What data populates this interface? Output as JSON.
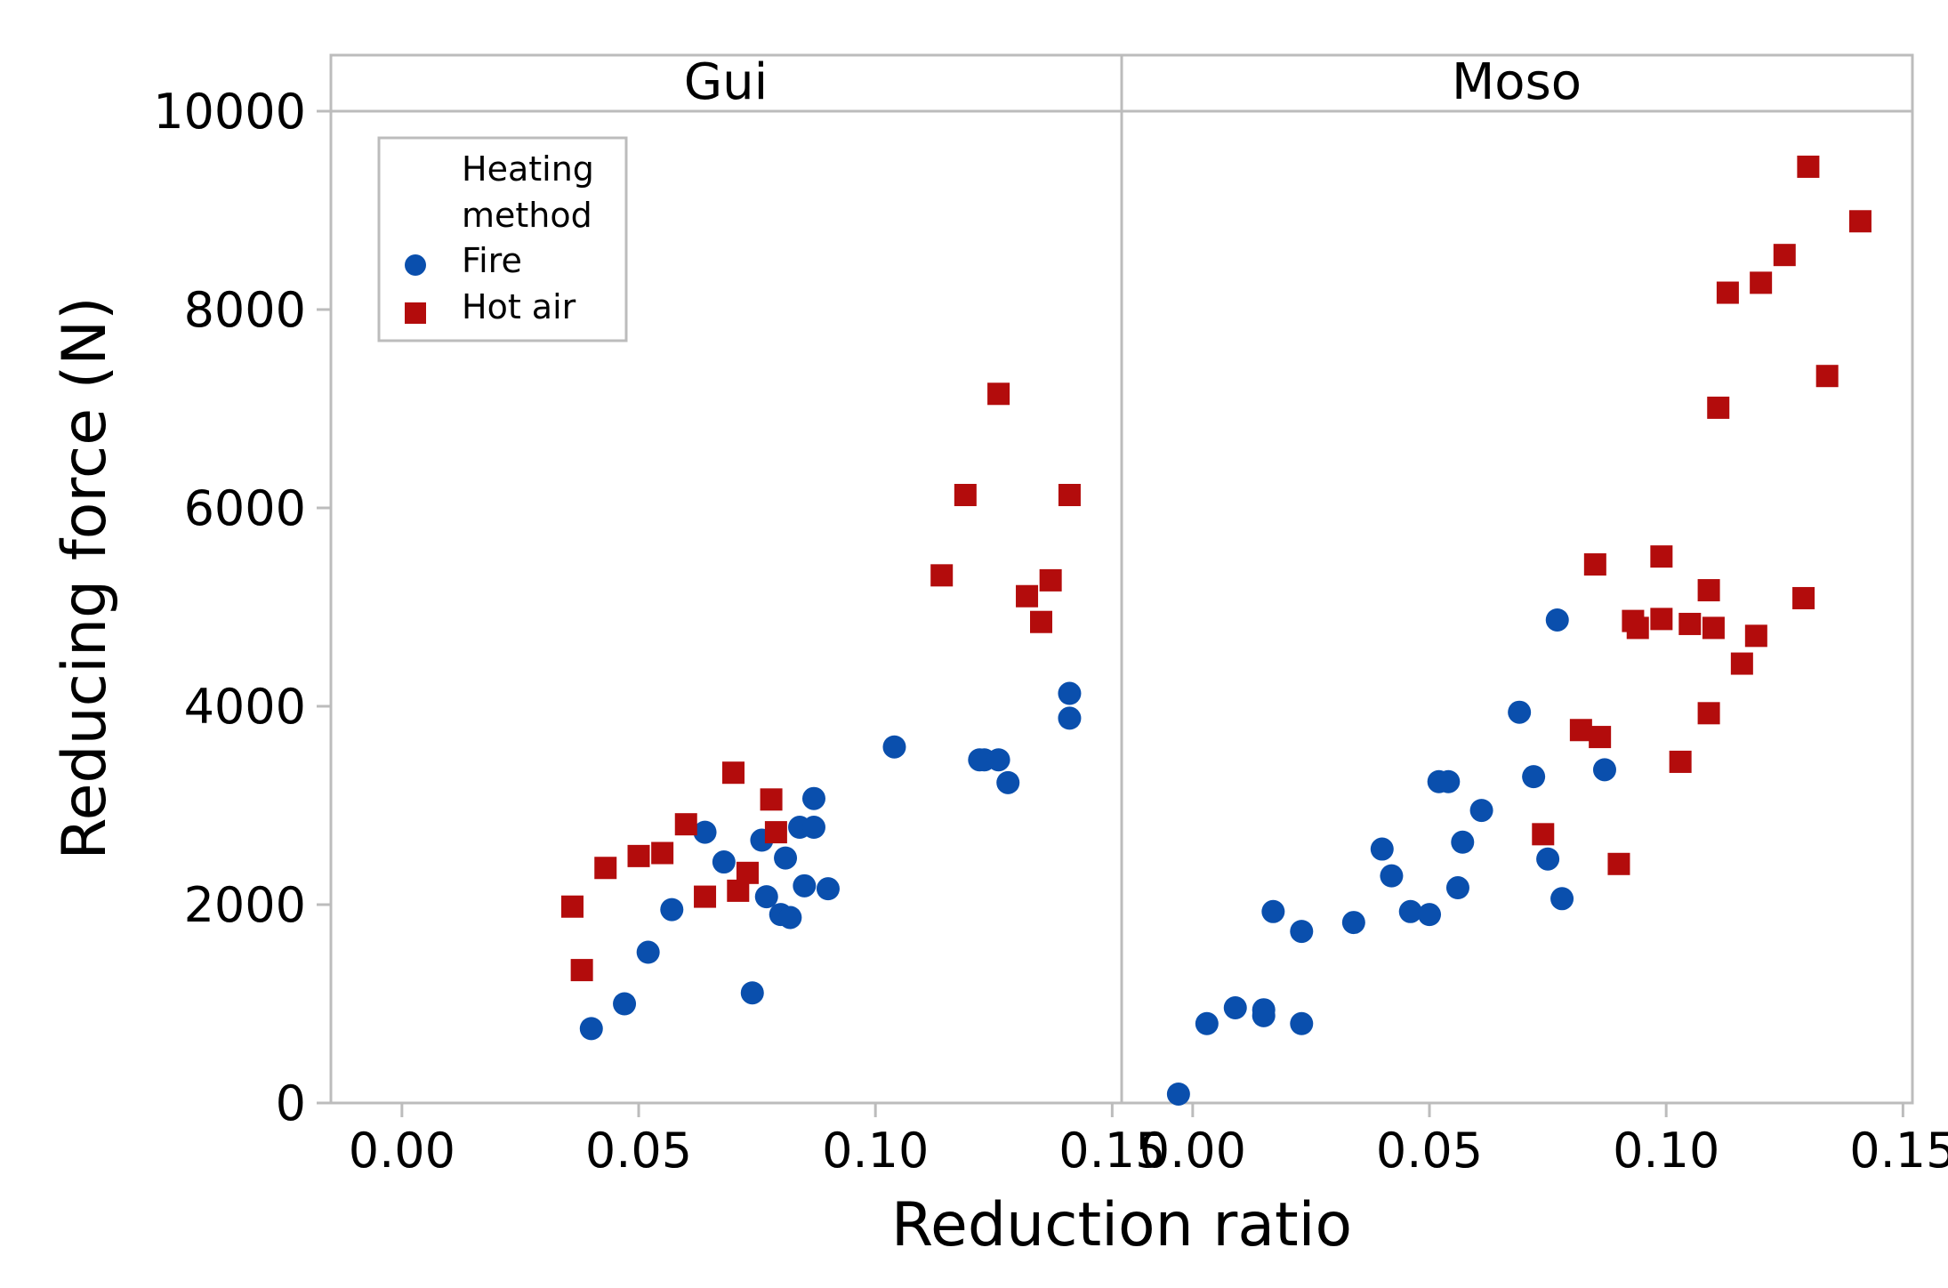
{
  "chart_data": {
    "type": "scatter",
    "xlabel": "Reduction ratio",
    "ylabel": "Reducing force (N)",
    "xlim": [
      -0.015,
      0.152
    ],
    "ylim": [
      0,
      10000
    ],
    "xticks": [
      "0.00",
      "0.05",
      "0.10",
      "0.15"
    ],
    "yticks": [
      "0",
      "2000",
      "4000",
      "6000",
      "8000",
      "10000"
    ],
    "legend": {
      "title": "Heating method",
      "title_lines": [
        "Heating",
        "method"
      ],
      "position": "top-left",
      "entries": [
        {
          "name": "Fire",
          "color": "#0a4fad",
          "marker": "circle"
        },
        {
          "name": "Hot air",
          "color": "#b30c0c",
          "marker": "square"
        }
      ]
    },
    "panels": [
      {
        "name": "Gui",
        "series": [
          {
            "name": "Fire",
            "points": [
              [
                0.04,
                750
              ],
              [
                0.047,
                1000
              ],
              [
                0.052,
                1520
              ],
              [
                0.057,
                1950
              ],
              [
                0.064,
                2730
              ],
              [
                0.068,
                2430
              ],
              [
                0.074,
                1110
              ],
              [
                0.076,
                2650
              ],
              [
                0.077,
                2080
              ],
              [
                0.08,
                1900
              ],
              [
                0.081,
                2470
              ],
              [
                0.082,
                1870
              ],
              [
                0.084,
                2780
              ],
              [
                0.085,
                2190
              ],
              [
                0.087,
                2780
              ],
              [
                0.087,
                3070
              ],
              [
                0.09,
                2160
              ],
              [
                0.104,
                3590
              ],
              [
                0.122,
                3460
              ],
              [
                0.123,
                3460
              ],
              [
                0.126,
                3460
              ],
              [
                0.128,
                3230
              ],
              [
                0.141,
                4130
              ],
              [
                0.141,
                3880
              ]
            ]
          },
          {
            "name": "Hot air",
            "points": [
              [
                0.036,
                1980
              ],
              [
                0.038,
                1340
              ],
              [
                0.043,
                2370
              ],
              [
                0.05,
                2490
              ],
              [
                0.055,
                2520
              ],
              [
                0.06,
                2810
              ],
              [
                0.064,
                2080
              ],
              [
                0.07,
                3330
              ],
              [
                0.071,
                2140
              ],
              [
                0.073,
                2320
              ],
              [
                0.078,
                3060
              ],
              [
                0.079,
                2730
              ],
              [
                0.114,
                5320
              ],
              [
                0.119,
                6130
              ],
              [
                0.126,
                7150
              ],
              [
                0.132,
                5110
              ],
              [
                0.135,
                4850
              ],
              [
                0.137,
                5270
              ],
              [
                0.141,
                6130
              ]
            ]
          }
        ]
      },
      {
        "name": "Moso",
        "series": [
          {
            "name": "Fire",
            "points": [
              [
                -0.003,
                90
              ],
              [
                0.003,
                800
              ],
              [
                0.009,
                960
              ],
              [
                0.015,
                880
              ],
              [
                0.015,
                940
              ],
              [
                0.017,
                1930
              ],
              [
                0.023,
                800
              ],
              [
                0.023,
                1730
              ],
              [
                0.034,
                1820
              ],
              [
                0.04,
                2560
              ],
              [
                0.042,
                2290
              ],
              [
                0.046,
                1930
              ],
              [
                0.05,
                1900
              ],
              [
                0.052,
                3240
              ],
              [
                0.054,
                3240
              ],
              [
                0.056,
                2170
              ],
              [
                0.057,
                2630
              ],
              [
                0.061,
                2950
              ],
              [
                0.069,
                3940
              ],
              [
                0.072,
                3290
              ],
              [
                0.075,
                2460
              ],
              [
                0.077,
                4870
              ],
              [
                0.078,
                2060
              ],
              [
                0.087,
                3360
              ]
            ]
          },
          {
            "name": "Hot air",
            "points": [
              [
                0.074,
                2710
              ],
              [
                0.082,
                3760
              ],
              [
                0.085,
                5430
              ],
              [
                0.086,
                3690
              ],
              [
                0.09,
                2410
              ],
              [
                0.093,
                4860
              ],
              [
                0.094,
                4790
              ],
              [
                0.099,
                5510
              ],
              [
                0.099,
                4880
              ],
              [
                0.103,
                3440
              ],
              [
                0.105,
                4830
              ],
              [
                0.109,
                3930
              ],
              [
                0.109,
                5170
              ],
              [
                0.11,
                4790
              ],
              [
                0.111,
                7010
              ],
              [
                0.113,
                8170
              ],
              [
                0.116,
                4430
              ],
              [
                0.119,
                4710
              ],
              [
                0.12,
                8270
              ],
              [
                0.125,
                8550
              ],
              [
                0.129,
                5090
              ],
              [
                0.13,
                9440
              ],
              [
                0.134,
                7330
              ],
              [
                0.141,
                8890
              ]
            ]
          }
        ]
      }
    ]
  }
}
